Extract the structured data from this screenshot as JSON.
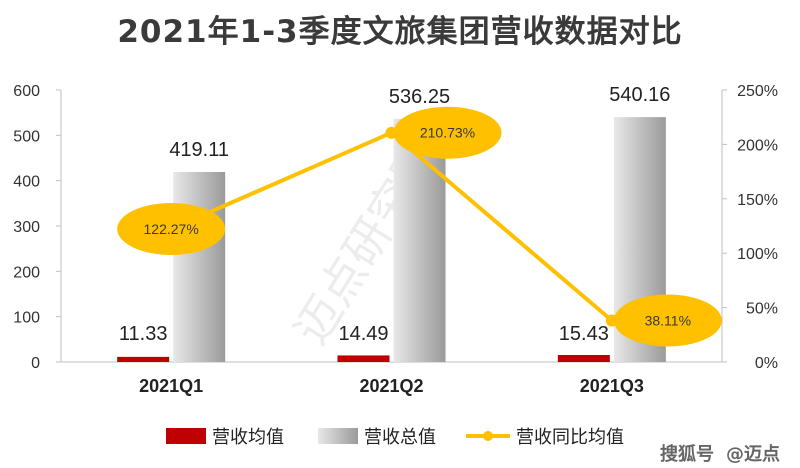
{
  "title": "2021年1-3季度文旅集团营收数据对比",
  "watermark": "迈点研究院",
  "footer": {
    "logo_text": "搜狐号",
    "handle": "@迈点"
  },
  "colors": {
    "avg_bar": "#c00000",
    "total_bar_light": "#e8e8e8",
    "total_bar_dark": "#9a9a9a",
    "line": "#ffc000"
  },
  "chart_data": {
    "type": "bar",
    "categories": [
      "2021Q1",
      "2021Q2",
      "2021Q3"
    ],
    "series": [
      {
        "name": "营收均值",
        "type": "bar",
        "axis": "left",
        "values": [
          11.33,
          14.49,
          15.43
        ],
        "labels": [
          "11.33",
          "14.49",
          "15.43"
        ]
      },
      {
        "name": "营收总值",
        "type": "bar",
        "axis": "left",
        "values": [
          419.11,
          536.25,
          540.16
        ],
        "labels": [
          "419.11",
          "536.25",
          "540.16"
        ]
      },
      {
        "name": "营收同比均值",
        "type": "line",
        "axis": "right",
        "values": [
          122.27,
          210.73,
          38.11
        ],
        "labels": [
          "122.27%",
          "210.73%",
          "38.11%"
        ]
      }
    ],
    "y_left": {
      "lim": [
        0,
        600
      ],
      "ticks": [
        "0",
        "100",
        "200",
        "300",
        "400",
        "500",
        "600"
      ]
    },
    "y_right": {
      "lim": [
        0,
        250
      ],
      "ticks": [
        "0%",
        "50%",
        "100%",
        "150%",
        "200%",
        "250%"
      ]
    },
    "grid": false,
    "legend": "bottom"
  }
}
